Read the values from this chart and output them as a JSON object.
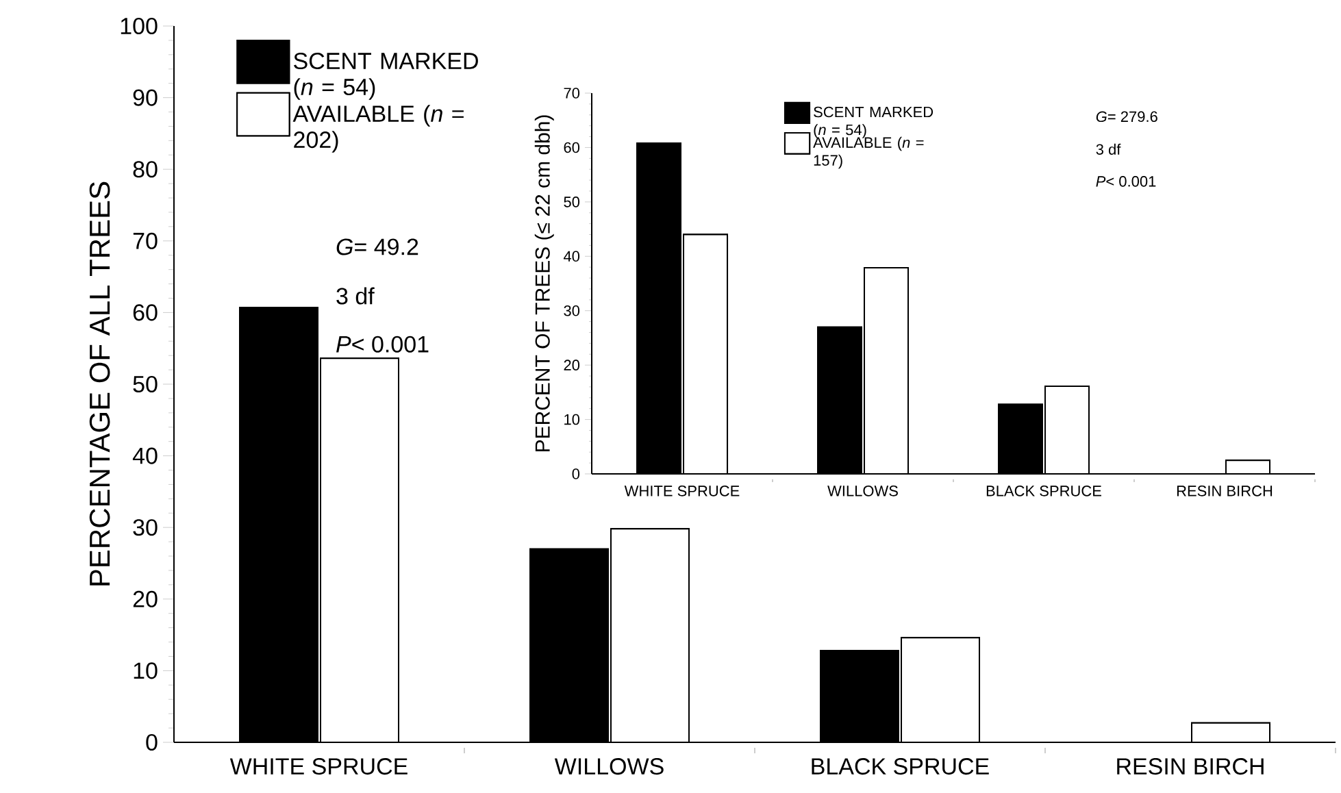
{
  "chart_data": [
    {
      "type": "bar",
      "categories": [
        "WHITE SPRUCE",
        "WILLOWS",
        "BLACK SPRUCE",
        "RESIN BIRCH"
      ],
      "ylabel": "PERCENTAGE OF ALL TREES",
      "ylim": [
        0,
        100
      ],
      "yticks": [
        0,
        10,
        20,
        30,
        40,
        50,
        60,
        70,
        80,
        90,
        100
      ],
      "legend": "top left",
      "series": [
        {
          "name": "SCENT MARKED (*n* = 54)",
          "color": "#000000",
          "values": [
            60.7,
            27,
            12.8,
            0
          ]
        },
        {
          "name": "AVAILABLE (*n* = 202)",
          "color": "#ffffff",
          "values": [
            53.6,
            29.8,
            14.6,
            2.7
          ]
        }
      ],
      "annotations": [
        "*G*= 49.2",
        "3 df",
        "*P*< 0.001"
      ]
    },
    {
      "type": "bar",
      "categories": [
        "WHITE SPRUCE",
        "WILLOWS",
        "BLACK SPRUCE",
        "RESIN BIRCH"
      ],
      "ylabel": "PERCENT OF TREES (≤ 22 cm dbh)",
      "ylim": [
        0,
        70
      ],
      "yticks": [
        0,
        10,
        20,
        30,
        40,
        50,
        60,
        70
      ],
      "legend": "top",
      "series": [
        {
          "name": "SCENT MARKED (*n* = 54)",
          "color": "#000000",
          "values": [
            60.8,
            27,
            12.8,
            0
          ]
        },
        {
          "name": "AVAILABLE (*n* = 157)",
          "color": "#ffffff",
          "values": [
            44,
            37.9,
            16.1,
            2.5
          ]
        }
      ],
      "annotations": [
        "*G*= 279.6",
        "3 df",
        "*P*< 0.001"
      ]
    }
  ]
}
